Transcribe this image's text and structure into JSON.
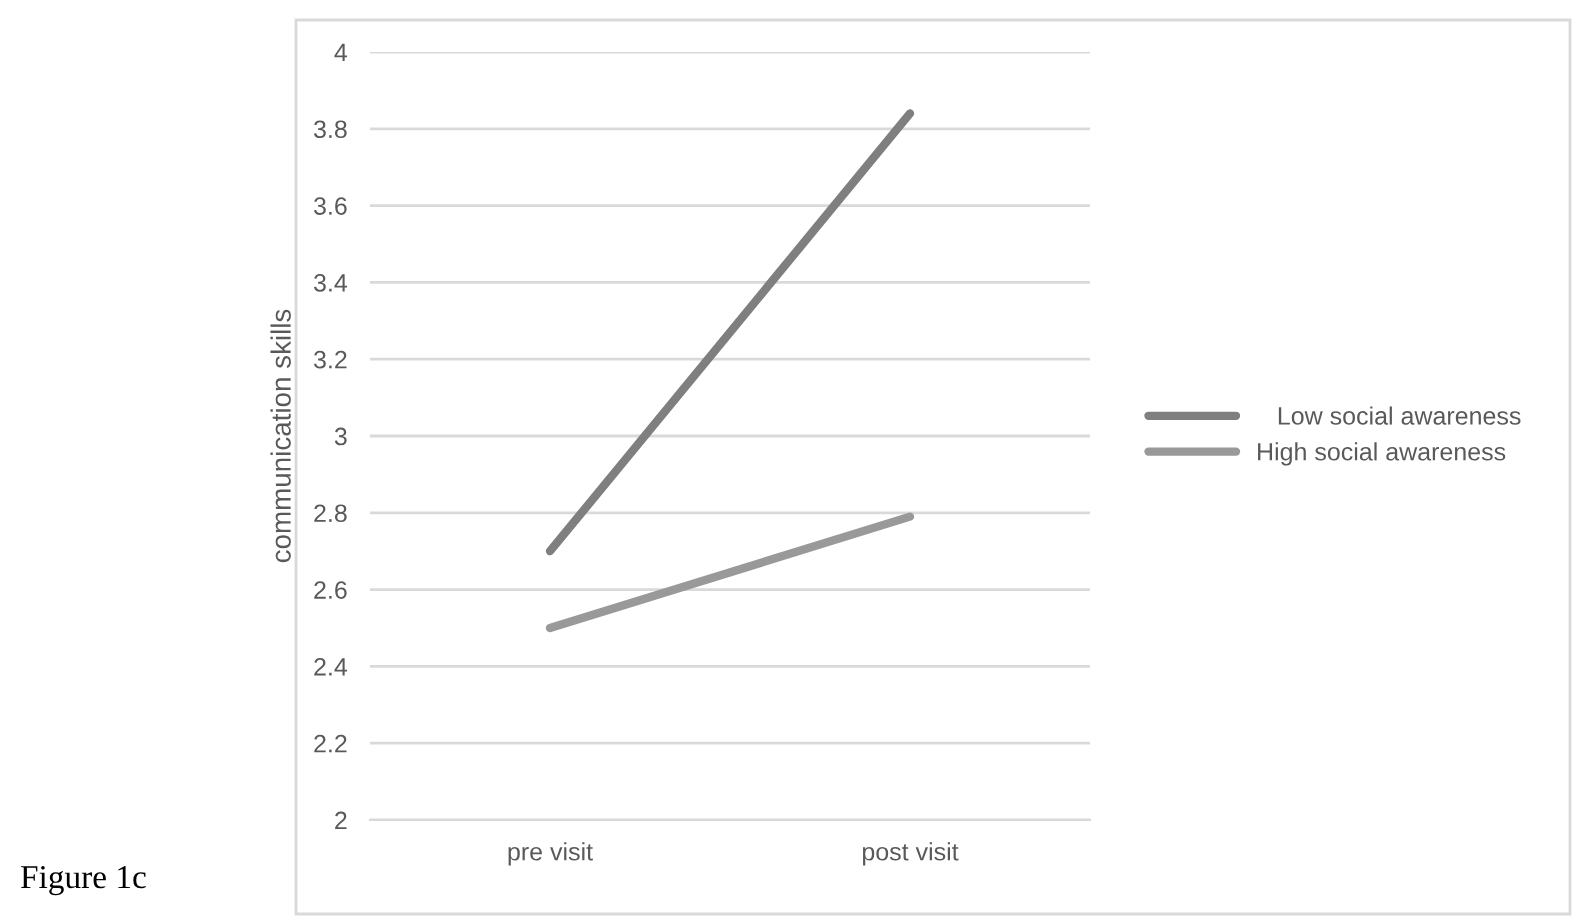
{
  "chart_data": {
    "type": "line",
    "ylabel": "communication skills",
    "categories": [
      "pre visit",
      "post visit"
    ],
    "series": [
      {
        "name": "   Low social awareness",
        "color": "#7f7f7f",
        "values": [
          2.7,
          3.84
        ]
      },
      {
        "name": "High social awareness",
        "color": "#999999",
        "values": [
          2.5,
          2.79
        ]
      }
    ],
    "ylim": [
      2,
      4
    ],
    "yticks": [
      2,
      2.2,
      2.4,
      2.6,
      2.8,
      3,
      3.2,
      3.4,
      3.6,
      3.8,
      4
    ],
    "grid": "y",
    "legend": "right",
    "marker": "none",
    "line_style": "solid",
    "annotations": [
      "Figure 1c"
    ]
  }
}
